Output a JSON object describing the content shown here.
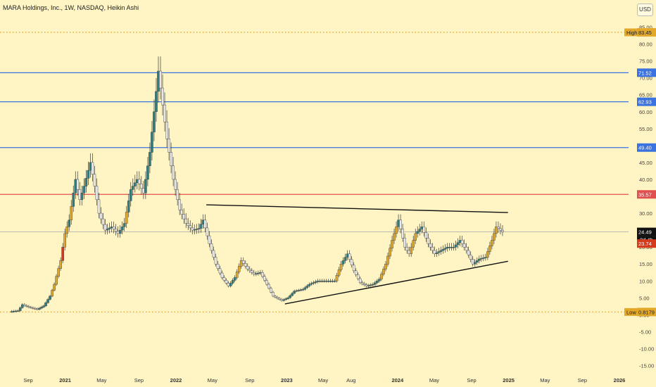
{
  "header": {
    "title": "MARA Holdings, Inc., 1W, NASDAQ, Heikin Ashi",
    "currency": "USD"
  },
  "colors": {
    "background": "#fff5c4",
    "bull": "#2f7f80",
    "bear": "#e8e8e8",
    "trend_bull": "#e0a726",
    "trend_bear": "#d63a1c",
    "resistance": "#3a72e0",
    "key_red": "#e05050",
    "dotted": "#e3a82a",
    "price_line": "#b0b0b0"
  },
  "chart_data": {
    "type": "candlestick",
    "title": "MARA Holdings, Inc., 1W, NASDAQ, Heikin Ashi",
    "ylim": [
      -15,
      85
    ],
    "y_ticks": [
      "85.00",
      "80.00",
      "75.00",
      "70.00",
      "65.00",
      "60.00",
      "55.00",
      "50.00",
      "45.00",
      "40.00",
      "35.00",
      "30.00",
      "25.00",
      "20.00",
      "15.00",
      "10.00",
      "5.00",
      "0.00",
      "-5.00",
      "-10.00",
      "-15.00"
    ],
    "x_ticks": [
      "Sep",
      "2021",
      "May",
      "Sep",
      "2022",
      "May",
      "Sep",
      "2023",
      "May",
      "Aug",
      "2024",
      "May",
      "Sep",
      "2025",
      "May",
      "Sep",
      "2026"
    ],
    "x_tick_dates": [
      "2020-09-01",
      "2021-01-01",
      "2021-05-01",
      "2021-09-01",
      "2022-01-01",
      "2022-05-01",
      "2022-09-01",
      "2023-01-01",
      "2023-05-01",
      "2023-08-01",
      "2024-01-01",
      "2024-05-01",
      "2024-09-01",
      "2025-01-01",
      "2025-05-01",
      "2025-09-01",
      "2026-01-01"
    ],
    "levels": [
      {
        "label": "High",
        "value": 83.45,
        "value_text": "83.45",
        "style": "dotted",
        "color": "#e3a82a"
      },
      {
        "label": "",
        "value": 71.52,
        "value_text": "71.52",
        "style": "solid",
        "color": "#3a72e0"
      },
      {
        "label": "",
        "value": 62.93,
        "value_text": "62.93",
        "style": "solid",
        "color": "#3a72e0"
      },
      {
        "label": "",
        "value": 49.4,
        "value_text": "49.40",
        "style": "solid",
        "color": "#3a72e0"
      },
      {
        "label": "",
        "value": 35.57,
        "value_text": "35.57",
        "style": "solid",
        "color": "#e05050"
      },
      {
        "label": "Low",
        "value": 0.8179,
        "value_text": "0.8179",
        "style": "dotted",
        "color": "#e3a82a"
      }
    ],
    "price": {
      "last": "24.49",
      "countdown": "2d 4h",
      "prev": "23.74",
      "value": 24.49
    },
    "trendlines": [
      {
        "from": [
          "2022-04-11",
          32.5
        ],
        "to": [
          "2024-12-30",
          30.2
        ]
      },
      {
        "from": [
          "2022-12-26",
          3.2
        ],
        "to": [
          "2024-12-30",
          15.8
        ]
      }
    ],
    "series": [
      {
        "date": "2020-07-06",
        "close": 0.9
      },
      {
        "date": "2020-08-03",
        "close": 1.2
      },
      {
        "date": "2020-08-17",
        "close": 3.0
      },
      {
        "date": "2020-09-07",
        "close": 2.2
      },
      {
        "date": "2020-10-05",
        "close": 1.6
      },
      {
        "date": "2020-10-26",
        "close": 2.6
      },
      {
        "date": "2020-11-16",
        "close": 5.5
      },
      {
        "date": "2020-11-30",
        "close": 9.0
      },
      {
        "date": "2020-12-21",
        "close": 16.0
      },
      {
        "date": "2021-01-04",
        "close": 24.0
      },
      {
        "date": "2021-01-18",
        "close": 28.0
      },
      {
        "date": "2021-02-08",
        "close": 40.0
      },
      {
        "date": "2021-02-22",
        "close": 34.0
      },
      {
        "date": "2021-03-08",
        "close": 38.0
      },
      {
        "date": "2021-03-29",
        "close": 45.0
      },
      {
        "date": "2021-04-12",
        "close": 38.0
      },
      {
        "date": "2021-04-26",
        "close": 30.0
      },
      {
        "date": "2021-05-17",
        "close": 25.0
      },
      {
        "date": "2021-06-07",
        "close": 26.0
      },
      {
        "date": "2021-06-28",
        "close": 24.0
      },
      {
        "date": "2021-07-19",
        "close": 27.0
      },
      {
        "date": "2021-08-09",
        "close": 37.0
      },
      {
        "date": "2021-08-30",
        "close": 40.0
      },
      {
        "date": "2021-09-20",
        "close": 36.0
      },
      {
        "date": "2021-10-11",
        "close": 48.0
      },
      {
        "date": "2021-10-25",
        "close": 60.0
      },
      {
        "date": "2021-11-08",
        "close": 72.0
      },
      {
        "date": "2021-11-22",
        "close": 62.0
      },
      {
        "date": "2021-12-06",
        "close": 52.0
      },
      {
        "date": "2021-12-27",
        "close": 40.0
      },
      {
        "date": "2022-01-17",
        "close": 31.0
      },
      {
        "date": "2022-02-07",
        "close": 27.0
      },
      {
        "date": "2022-02-28",
        "close": 25.0
      },
      {
        "date": "2022-03-21",
        "close": 25.5
      },
      {
        "date": "2022-04-04",
        "close": 28.0
      },
      {
        "date": "2022-04-25",
        "close": 21.0
      },
      {
        "date": "2022-05-16",
        "close": 15.0
      },
      {
        "date": "2022-06-06",
        "close": 11.0
      },
      {
        "date": "2022-06-27",
        "close": 8.5
      },
      {
        "date": "2022-07-18",
        "close": 11.0
      },
      {
        "date": "2022-08-08",
        "close": 16.0
      },
      {
        "date": "2022-08-29",
        "close": 13.5
      },
      {
        "date": "2022-09-19",
        "close": 12.0
      },
      {
        "date": "2022-10-10",
        "close": 12.5
      },
      {
        "date": "2022-10-31",
        "close": 9.0
      },
      {
        "date": "2022-11-21",
        "close": 5.5
      },
      {
        "date": "2022-12-19",
        "close": 4.2
      },
      {
        "date": "2023-01-09",
        "close": 5.0
      },
      {
        "date": "2023-01-30",
        "close": 7.0
      },
      {
        "date": "2023-02-27",
        "close": 7.5
      },
      {
        "date": "2023-03-20",
        "close": 9.0
      },
      {
        "date": "2023-04-17",
        "close": 10.0
      },
      {
        "date": "2023-05-15",
        "close": 10.0
      },
      {
        "date": "2023-06-12",
        "close": 10.0
      },
      {
        "date": "2023-07-03",
        "close": 15.0
      },
      {
        "date": "2023-07-24",
        "close": 18.0
      },
      {
        "date": "2023-08-14",
        "close": 13.0
      },
      {
        "date": "2023-09-04",
        "close": 9.5
      },
      {
        "date": "2023-09-25",
        "close": 8.5
      },
      {
        "date": "2023-10-16",
        "close": 9.0
      },
      {
        "date": "2023-11-06",
        "close": 10.5
      },
      {
        "date": "2023-11-27",
        "close": 15.0
      },
      {
        "date": "2023-12-18",
        "close": 22.0
      },
      {
        "date": "2024-01-08",
        "close": 28.0
      },
      {
        "date": "2024-01-29",
        "close": 20.0
      },
      {
        "date": "2024-02-12",
        "close": 18.0
      },
      {
        "date": "2024-03-04",
        "close": 24.0
      },
      {
        "date": "2024-03-25",
        "close": 26.0
      },
      {
        "date": "2024-04-15",
        "close": 21.0
      },
      {
        "date": "2024-05-06",
        "close": 18.0
      },
      {
        "date": "2024-05-27",
        "close": 19.0
      },
      {
        "date": "2024-06-17",
        "close": 20.0
      },
      {
        "date": "2024-07-08",
        "close": 20.0
      },
      {
        "date": "2024-07-29",
        "close": 22.0
      },
      {
        "date": "2024-08-19",
        "close": 19.0
      },
      {
        "date": "2024-09-09",
        "close": 15.0
      },
      {
        "date": "2024-09-30",
        "close": 16.5
      },
      {
        "date": "2024-10-21",
        "close": 17.0
      },
      {
        "date": "2024-11-11",
        "close": 22.0
      },
      {
        "date": "2024-11-25",
        "close": 26.0
      },
      {
        "date": "2024-12-16",
        "close": 24.49
      }
    ]
  }
}
